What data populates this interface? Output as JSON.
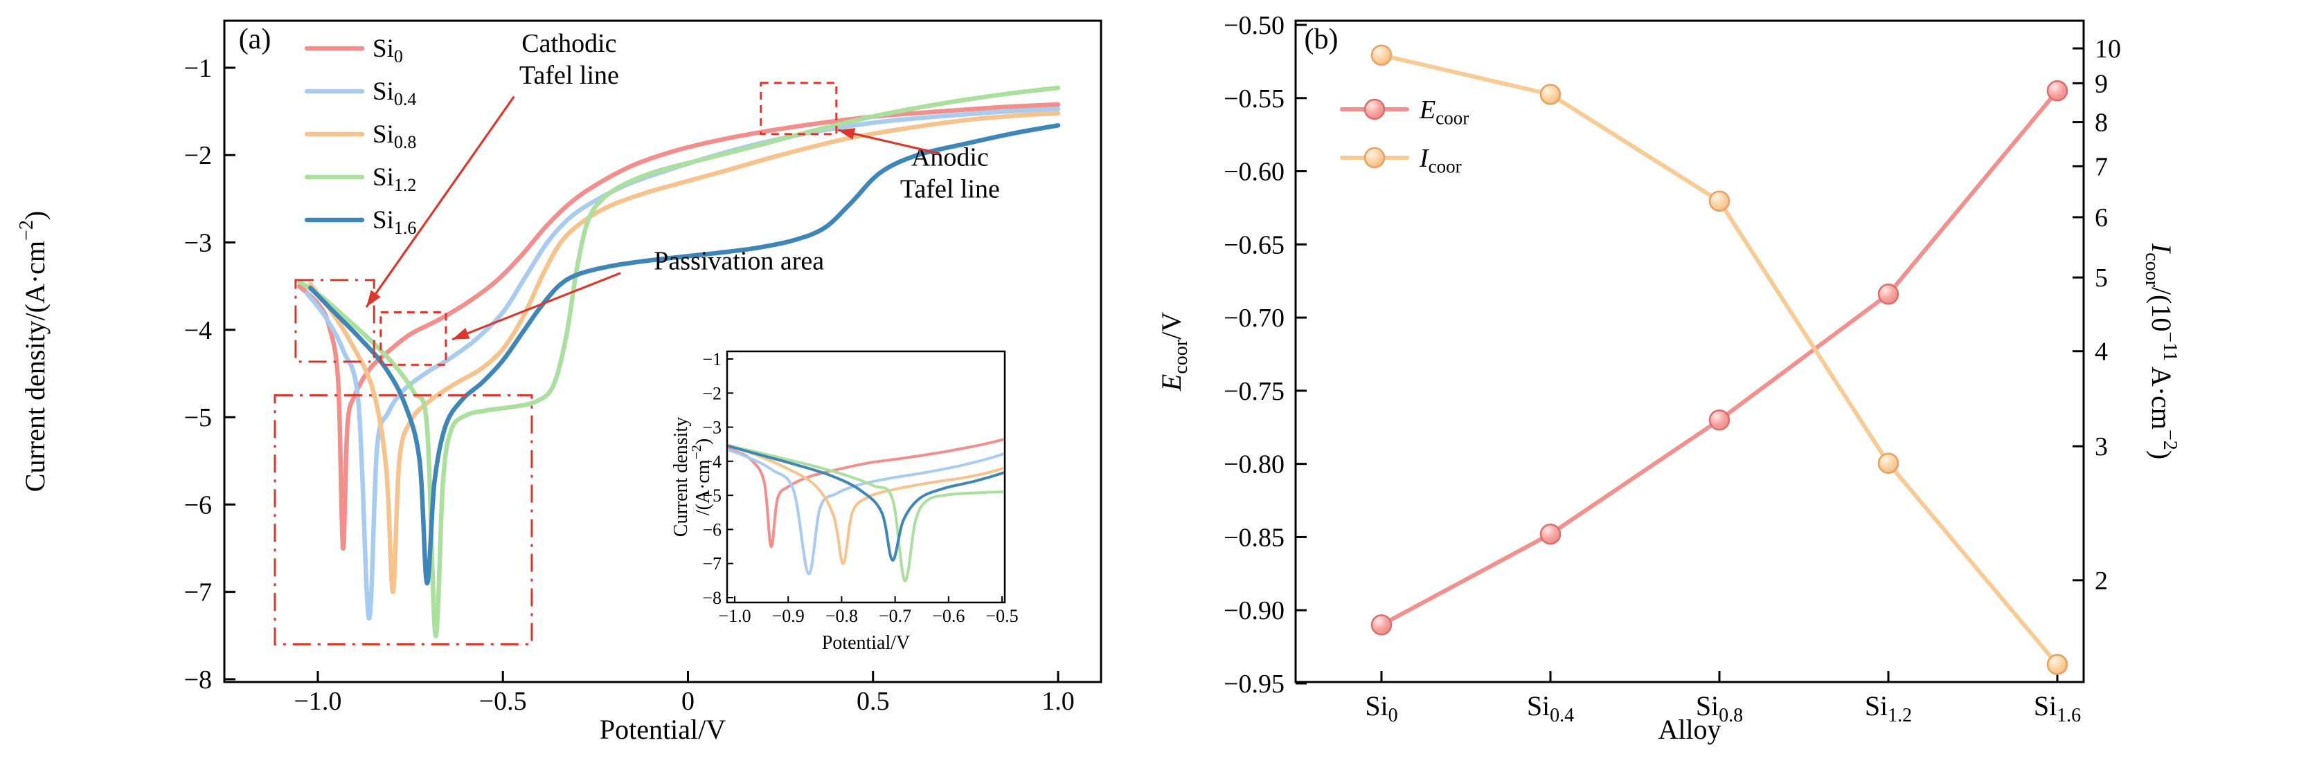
{
  "colors": {
    "annotation_red": "#dc372a",
    "axis": "#000000",
    "background": "#ffffff"
  },
  "chart_data": [
    {
      "type": "line",
      "panel": "a",
      "tag": "(a)",
      "xlabel": "Potential/V",
      "ylabel": [
        {
          "t": "Current density/(A·cm"
        },
        {
          "t": "−2",
          "s": 1
        },
        {
          "t": ")"
        }
      ],
      "xlim": [
        -1.2525,
        1.116
      ],
      "ylim": [
        -8.032,
        -0.462
      ],
      "xticks": [
        -1.0,
        -0.5,
        0,
        0.5,
        1.0
      ],
      "yticks": [
        -1,
        -2,
        -3,
        -4,
        -5,
        -6,
        -7,
        -8
      ],
      "grid": false,
      "legend_position": "upper-left",
      "series": [
        {
          "name": "Si0",
          "label": [
            {
              "t": "Si"
            },
            {
              "t": "0",
              "s": -1
            }
          ],
          "color": "#f28f8d",
          "points": [
            [
              -1.05,
              -3.5
            ],
            [
              -1.0,
              -3.7
            ],
            [
              -0.97,
              -3.95
            ],
            [
              -0.945,
              -4.6
            ],
            [
              -0.932,
              -6.5
            ],
            [
              -0.92,
              -5.1
            ],
            [
              -0.9,
              -4.75
            ],
            [
              -0.86,
              -4.45
            ],
            [
              -0.81,
              -4.25
            ],
            [
              -0.75,
              -4.05
            ],
            [
              -0.68,
              -3.9
            ],
            [
              -0.6,
              -3.7
            ],
            [
              -0.52,
              -3.45
            ],
            [
              -0.45,
              -3.15
            ],
            [
              -0.38,
              -2.8
            ],
            [
              -0.31,
              -2.52
            ],
            [
              -0.24,
              -2.32
            ],
            [
              -0.15,
              -2.12
            ],
            [
              -0.05,
              -1.97
            ],
            [
              0.05,
              -1.86
            ],
            [
              0.18,
              -1.75
            ],
            [
              0.33,
              -1.65
            ],
            [
              0.5,
              -1.56
            ],
            [
              0.68,
              -1.5
            ],
            [
              0.85,
              -1.45
            ],
            [
              1.0,
              -1.42
            ]
          ]
        },
        {
          "name": "Si0_4",
          "label": [
            {
              "t": "Si"
            },
            {
              "t": "0.4",
              "s": -1
            }
          ],
          "color": "#a8cbf0",
          "points": [
            [
              -1.03,
              -3.58
            ],
            [
              -0.98,
              -3.85
            ],
            [
              -0.93,
              -4.25
            ],
            [
              -0.89,
              -4.85
            ],
            [
              -0.862,
              -7.3
            ],
            [
              -0.84,
              -5.35
            ],
            [
              -0.81,
              -4.95
            ],
            [
              -0.77,
              -4.7
            ],
            [
              -0.71,
              -4.5
            ],
            [
              -0.64,
              -4.32
            ],
            [
              -0.57,
              -4.1
            ],
            [
              -0.5,
              -3.8
            ],
            [
              -0.44,
              -3.4
            ],
            [
              -0.38,
              -3.0
            ],
            [
              -0.32,
              -2.72
            ],
            [
              -0.25,
              -2.52
            ],
            [
              -0.16,
              -2.33
            ],
            [
              -0.06,
              -2.18
            ],
            [
              0.06,
              -2.02
            ],
            [
              0.2,
              -1.86
            ],
            [
              0.36,
              -1.72
            ],
            [
              0.52,
              -1.62
            ],
            [
              0.7,
              -1.55
            ],
            [
              0.86,
              -1.5
            ],
            [
              1.0,
              -1.47
            ]
          ]
        },
        {
          "name": "Si0_8",
          "label": [
            {
              "t": "Si"
            },
            {
              "t": "0.8",
              "s": -1
            }
          ],
          "color": "#f7c38d",
          "points": [
            [
              -1.02,
              -3.48
            ],
            [
              -0.97,
              -3.75
            ],
            [
              -0.91,
              -4.15
            ],
            [
              -0.85,
              -4.7
            ],
            [
              -0.815,
              -5.6
            ],
            [
              -0.797,
              -7.0
            ],
            [
              -0.78,
              -5.5
            ],
            [
              -0.75,
              -5.05
            ],
            [
              -0.7,
              -4.82
            ],
            [
              -0.63,
              -4.62
            ],
            [
              -0.56,
              -4.45
            ],
            [
              -0.5,
              -4.22
            ],
            [
              -0.445,
              -3.85
            ],
            [
              -0.39,
              -3.35
            ],
            [
              -0.34,
              -2.98
            ],
            [
              -0.28,
              -2.75
            ],
            [
              -0.21,
              -2.58
            ],
            [
              -0.12,
              -2.44
            ],
            [
              -0.02,
              -2.32
            ],
            [
              0.1,
              -2.18
            ],
            [
              0.25,
              -2.0
            ],
            [
              0.42,
              -1.82
            ],
            [
              0.58,
              -1.7
            ],
            [
              0.75,
              -1.6
            ],
            [
              0.88,
              -1.55
            ],
            [
              1.0,
              -1.52
            ]
          ]
        },
        {
          "name": "Si1_2",
          "label": [
            {
              "t": "Si"
            },
            {
              "t": "1.2",
              "s": -1
            }
          ],
          "color": "#abdf9e",
          "points": [
            [
              -1.05,
              -3.45
            ],
            [
              -0.99,
              -3.62
            ],
            [
              -0.92,
              -3.88
            ],
            [
              -0.85,
              -4.15
            ],
            [
              -0.79,
              -4.42
            ],
            [
              -0.74,
              -4.72
            ],
            [
              -0.705,
              -5.1
            ],
            [
              -0.682,
              -7.5
            ],
            [
              -0.662,
              -5.75
            ],
            [
              -0.64,
              -5.15
            ],
            [
              -0.6,
              -4.98
            ],
            [
              -0.54,
              -4.92
            ],
            [
              -0.47,
              -4.88
            ],
            [
              -0.41,
              -4.82
            ],
            [
              -0.365,
              -4.65
            ],
            [
              -0.33,
              -4.1
            ],
            [
              -0.3,
              -3.3
            ],
            [
              -0.27,
              -2.75
            ],
            [
              -0.23,
              -2.5
            ],
            [
              -0.17,
              -2.33
            ],
            [
              -0.08,
              -2.18
            ],
            [
              0.04,
              -2.05
            ],
            [
              0.18,
              -1.9
            ],
            [
              0.34,
              -1.72
            ],
            [
              0.52,
              -1.54
            ],
            [
              0.7,
              -1.4
            ],
            [
              0.86,
              -1.3
            ],
            [
              1.0,
              -1.23
            ]
          ]
        },
        {
          "name": "Si1_6",
          "label": [
            {
              "t": "Si"
            },
            {
              "t": "1.6",
              "s": -1
            }
          ],
          "color": "#3e86b8",
          "points": [
            [
              -1.02,
              -3.52
            ],
            [
              -0.96,
              -3.78
            ],
            [
              -0.89,
              -4.08
            ],
            [
              -0.82,
              -4.42
            ],
            [
              -0.765,
              -4.85
            ],
            [
              -0.725,
              -5.5
            ],
            [
              -0.705,
              -6.9
            ],
            [
              -0.685,
              -5.75
            ],
            [
              -0.655,
              -5.1
            ],
            [
              -0.61,
              -4.8
            ],
            [
              -0.555,
              -4.6
            ],
            [
              -0.5,
              -4.35
            ],
            [
              -0.45,
              -4.05
            ],
            [
              -0.4,
              -3.75
            ],
            [
              -0.35,
              -3.5
            ],
            [
              -0.3,
              -3.37
            ],
            [
              -0.22,
              -3.28
            ],
            [
              -0.13,
              -3.22
            ],
            [
              -0.03,
              -3.17
            ],
            [
              0.08,
              -3.12
            ],
            [
              0.19,
              -3.06
            ],
            [
              0.29,
              -2.97
            ],
            [
              0.37,
              -2.83
            ],
            [
              0.44,
              -2.55
            ],
            [
              0.52,
              -2.2
            ],
            [
              0.62,
              -2.0
            ],
            [
              0.75,
              -1.87
            ],
            [
              0.88,
              -1.75
            ],
            [
              1.0,
              -1.66
            ]
          ]
        }
      ],
      "annotations": {
        "cathodic": {
          "text_lines": [
            "Cathodic",
            "Tafel line"
          ],
          "text_xy": [
            -0.321,
            -0.82
          ],
          "arrow": [
            [
              -0.47,
              -1.33
            ],
            [
              -0.869,
              -3.74
            ]
          ],
          "box": [
            -1.06,
            -3.43,
            -0.848,
            -4.365
          ],
          "box_style": "dashdot"
        },
        "passivation": {
          "text_lines": [
            "Passivation area"
          ],
          "text_xy": [
            0.138,
            -3.31
          ],
          "arrow": [
            [
              -0.182,
              -3.35
            ],
            [
              -0.637,
              -4.11
            ]
          ],
          "box": [
            -0.83,
            -3.8,
            -0.654,
            -4.4
          ],
          "box_style": "dashed"
        },
        "anodic": {
          "text_lines": [
            "Anodic",
            "Tafel line"
          ],
          "text_xy": [
            0.708,
            -2.12
          ],
          "arrow": [
            [
              0.68,
              -1.982
            ],
            [
              0.405,
              -1.713
            ]
          ],
          "box": [
            0.197,
            -1.174,
            0.401,
            -1.76
          ],
          "box_style": "dashed"
        },
        "zoom_box": {
          "box": [
            -1.116,
            -4.75,
            -0.422,
            -7.6
          ],
          "box_style": "dashdot"
        }
      },
      "inset": {
        "xlabel": "Potential/V",
        "ylabel_lines": [
          [
            {
              "t": "Current density"
            }
          ],
          [
            {
              "t": "/(A·cm"
            },
            {
              "t": "−2",
              "s": 1
            },
            {
              "t": ")"
            }
          ]
        ],
        "xlim": [
          -1.01425,
          -0.49485
        ],
        "ylim": [
          -8.142,
          -0.777
        ],
        "xticks": [
          -1.0,
          -0.9,
          -0.8,
          -0.7,
          -0.6,
          -0.5
        ],
        "yticks": [
          -1,
          -2,
          -3,
          -4,
          -5,
          -6,
          -7,
          -8
        ]
      }
    },
    {
      "type": "line",
      "panel": "b",
      "tag": "(b)",
      "xlabel": "Alloy",
      "left_label": [
        {
          "t": "E",
          "i": 1
        },
        {
          "t": "coor",
          "s": -1
        },
        {
          "t": "/V"
        }
      ],
      "right_label": [
        {
          "t": "I",
          "i": 1
        },
        {
          "t": "coor",
          "s": -1
        },
        {
          "t": "/(10"
        },
        {
          "t": "−11",
          "s": 1
        },
        {
          "t": " A·cm"
        },
        {
          "t": "−2",
          "s": 1
        },
        {
          "t": ")"
        }
      ],
      "categories": [
        [
          {
            "t": "Si"
          },
          {
            "t": "0",
            "s": -1
          }
        ],
        [
          {
            "t": "Si"
          },
          {
            "t": "0.4",
            "s": -1
          }
        ],
        [
          {
            "t": "Si"
          },
          {
            "t": "0.8",
            "s": -1
          }
        ],
        [
          {
            "t": "Si"
          },
          {
            "t": "1.2",
            "s": -1
          }
        ],
        [
          {
            "t": "Si"
          },
          {
            "t": "1.6",
            "s": -1
          }
        ]
      ],
      "left_ticks": [
        -0.5,
        -0.55,
        -0.6,
        -0.65,
        -0.7,
        -0.75,
        -0.8,
        -0.85,
        -0.9,
        -0.95
      ],
      "left_range": [
        -0.95,
        -0.5
      ],
      "right_ticks": [
        10,
        9,
        8,
        7,
        6,
        5,
        4,
        3,
        2
      ],
      "right_scale": "log",
      "legend_position": "upper-left",
      "series": [
        {
          "name": "E_coor",
          "label": [
            {
              "t": "E",
              "i": 1
            },
            {
              "t": "coor",
              "s": -1
            }
          ],
          "axis": "left",
          "line_color": "#f2908e",
          "marker_edge": "#d96f6c",
          "marker_stops": [
            "#ffe9e7",
            "#f7a3a0",
            "#ee817e"
          ],
          "values": [
            -0.91,
            -0.848,
            -0.77,
            -0.684,
            -0.545
          ]
        },
        {
          "name": "I_coor",
          "label": [
            {
              "t": "I",
              "i": 1
            },
            {
              "t": "coor",
              "s": -1
            }
          ],
          "axis": "right",
          "line_color": "#f8ca94",
          "marker_edge": "#e8a061",
          "marker_stops": [
            "#fff3e2",
            "#fbd3a2",
            "#f3b278"
          ],
          "values": [
            9.8,
            8.7,
            6.3,
            2.85,
            1.55
          ]
        }
      ]
    }
  ]
}
